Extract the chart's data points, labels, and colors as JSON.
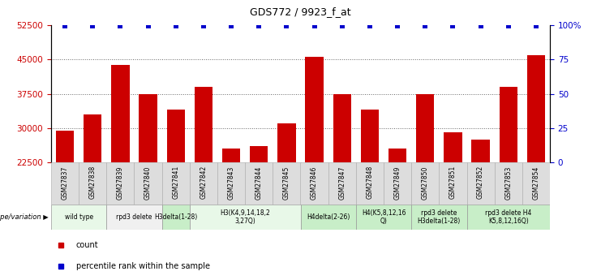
{
  "title": "GDS772 / 9923_f_at",
  "samples": [
    "GSM27837",
    "GSM27838",
    "GSM27839",
    "GSM27840",
    "GSM27841",
    "GSM27842",
    "GSM27843",
    "GSM27844",
    "GSM27845",
    "GSM27846",
    "GSM27847",
    "GSM27848",
    "GSM27849",
    "GSM27850",
    "GSM27851",
    "GSM27852",
    "GSM27853",
    "GSM27854"
  ],
  "counts": [
    29500,
    33000,
    43800,
    37500,
    34000,
    39000,
    25500,
    26000,
    31000,
    45500,
    37500,
    34000,
    25500,
    37500,
    29000,
    27500,
    39000,
    46000
  ],
  "bar_color": "#cc0000",
  "percentile_color": "#0000cc",
  "ylim_left": [
    22500,
    52500
  ],
  "ylim_right": [
    0,
    100
  ],
  "yticks_left": [
    22500,
    30000,
    37500,
    45000,
    52500
  ],
  "ytick_labels_left": [
    "22500",
    "30000",
    "37500",
    "45000",
    "52500"
  ],
  "yticks_right": [
    0,
    25,
    50,
    75,
    100
  ],
  "ytick_labels_right": [
    "0",
    "25",
    "50",
    "75",
    "100%"
  ],
  "groups": [
    {
      "label": "wild type",
      "start": 0,
      "end": 2,
      "color": "#e8f8e8"
    },
    {
      "label": "rpd3 delete",
      "start": 2,
      "end": 4,
      "color": "#f0f0f0"
    },
    {
      "label": "H3delta(1-28)",
      "start": 4,
      "end": 5,
      "color": "#c8eec8"
    },
    {
      "label": "H3(K4,9,14,18,2\n3,27Q)",
      "start": 5,
      "end": 9,
      "color": "#e8f8e8"
    },
    {
      "label": "H4delta(2-26)",
      "start": 9,
      "end": 11,
      "color": "#c8eec8"
    },
    {
      "label": "H4(K5,8,12,16\nQ)",
      "start": 11,
      "end": 13,
      "color": "#c8eec8"
    },
    {
      "label": "rpd3 delete\nH3delta(1-28)",
      "start": 13,
      "end": 15,
      "color": "#c8eec8"
    },
    {
      "label": "rpd3 delete H4\nK5,8,12,16Q)",
      "start": 15,
      "end": 18,
      "color": "#c8eec8"
    }
  ],
  "genotype_label": "genotype/variation",
  "legend_count_label": "count",
  "legend_percentile_label": "percentile rank within the sample",
  "bg_color": "#ffffff",
  "sample_bg_color": "#dddddd",
  "tick_label_color_left": "#cc0000",
  "tick_label_color_right": "#0000cc"
}
